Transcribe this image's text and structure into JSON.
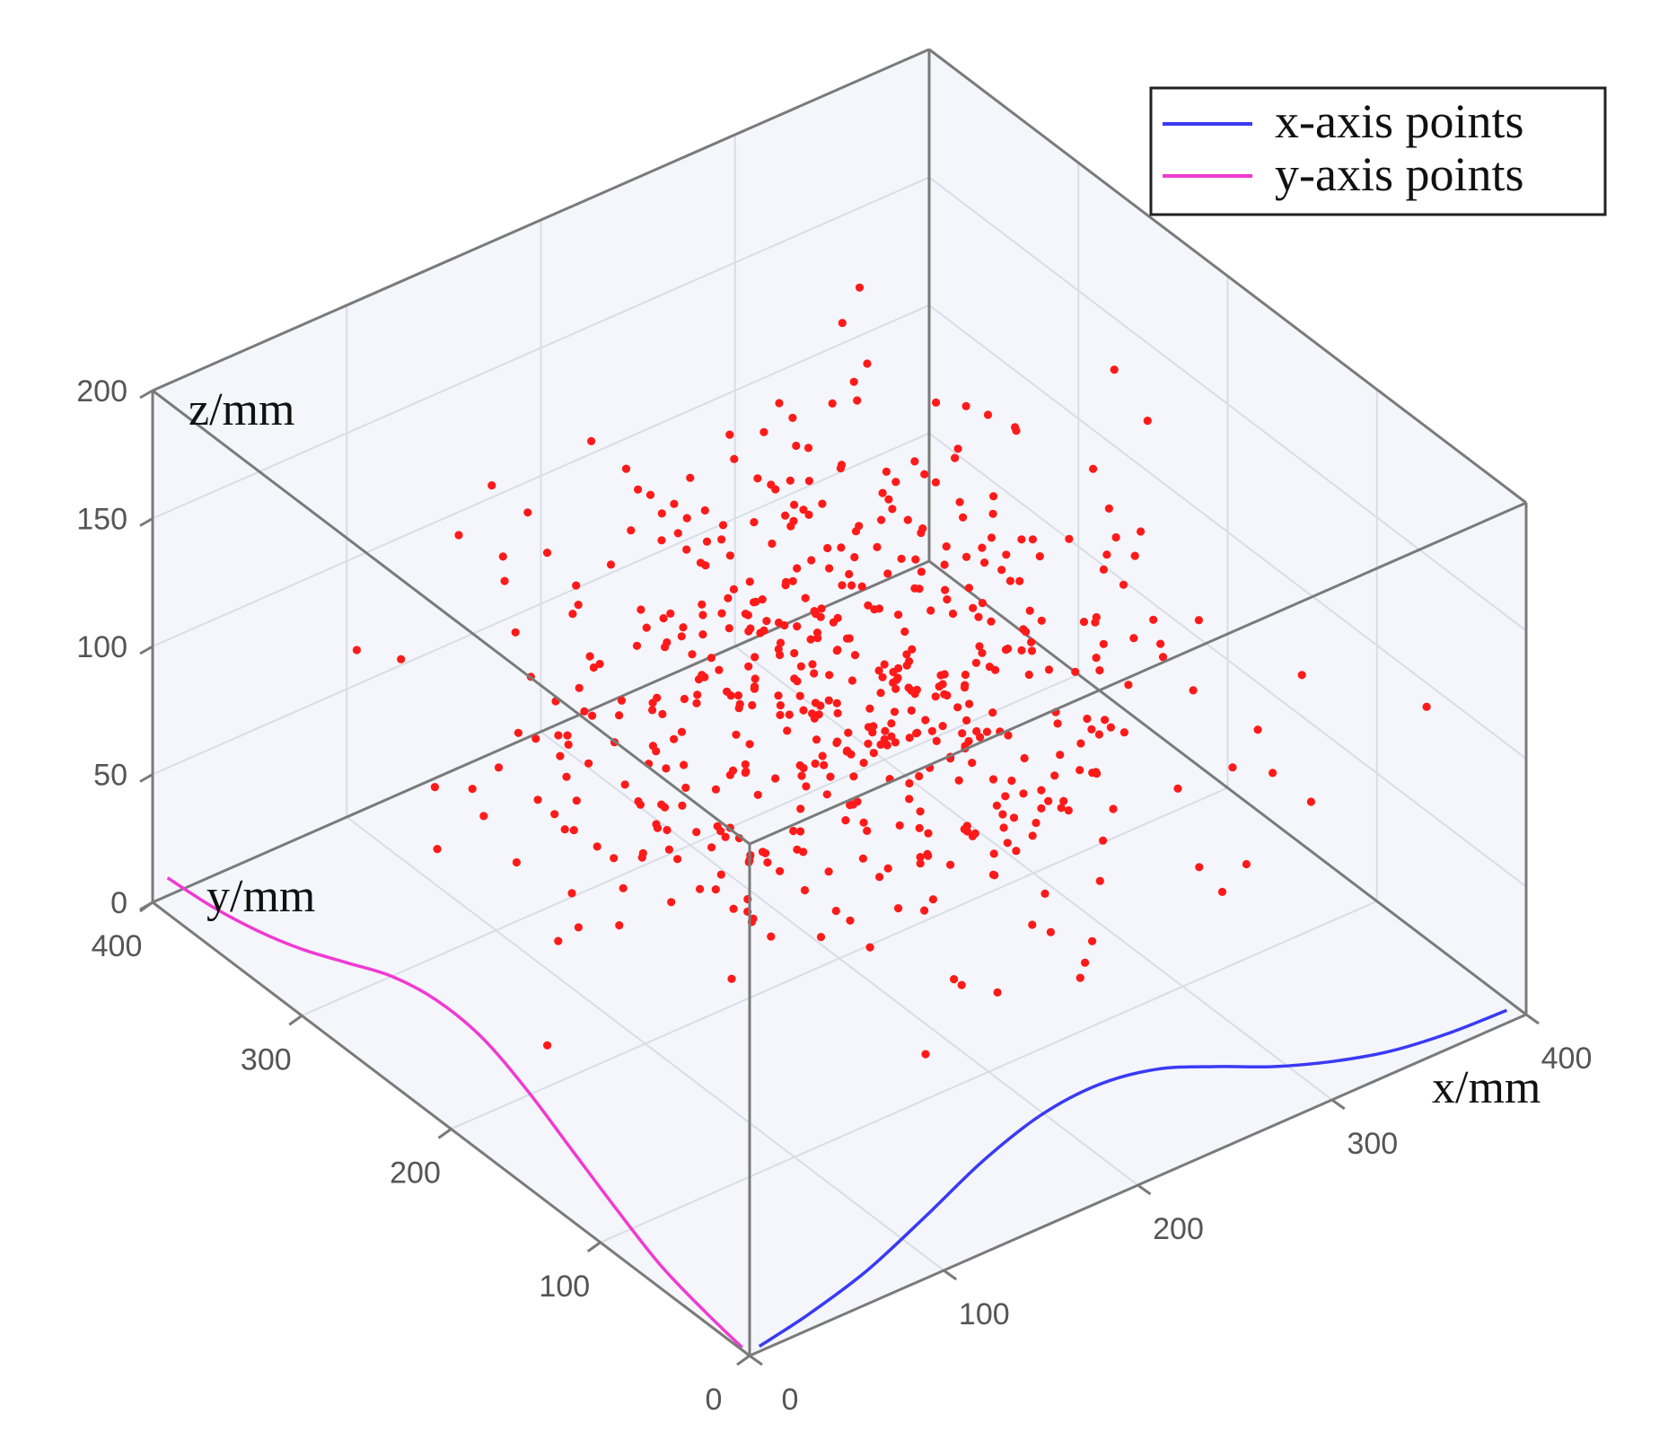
{
  "chart_data": {
    "type": "scatter",
    "projection": "3d",
    "xlabel": "x/mm",
    "ylabel": "y/mm",
    "zlabel": "z/mm",
    "xlim": [
      0,
      400
    ],
    "ylim": [
      0,
      400
    ],
    "zlim": [
      0,
      200
    ],
    "xticks": [
      0,
      100,
      200,
      300,
      400
    ],
    "yticks": [
      0,
      100,
      200,
      300,
      400
    ],
    "zticks": [
      0,
      50,
      100,
      150,
      200
    ],
    "grid": true,
    "legend": {
      "position": "top-right",
      "entries": [
        {
          "label": "x-axis points",
          "color": "#3a3af5"
        },
        {
          "label": "y-axis points",
          "color": "#f03ad2"
        }
      ]
    },
    "colors": {
      "points": "#ff1a1a",
      "x_curve": "#3a3af5",
      "y_curve": "#f03ad2"
    },
    "x_curve": {
      "x": [
        5,
        30,
        60,
        90,
        120,
        150,
        180,
        210,
        240,
        270,
        300,
        330,
        360,
        390
      ],
      "y": [
        0,
        0,
        0,
        0,
        0,
        0,
        0,
        0,
        0,
        0,
        0,
        0,
        0,
        0
      ],
      "z": [
        2,
        6,
        13,
        24,
        36,
        44,
        46,
        42,
        33,
        23,
        15,
        9,
        6,
        5
      ]
    },
    "y_curve": {
      "x": [
        0,
        0,
        0,
        0,
        0,
        0,
        0,
        0,
        0,
        0,
        0,
        0,
        0,
        0
      ],
      "y": [
        5,
        30,
        60,
        90,
        120,
        150,
        180,
        210,
        240,
        270,
        300,
        330,
        360,
        390
      ],
      "z": [
        1,
        4,
        9,
        18,
        28,
        38,
        45,
        46,
        42,
        34,
        26,
        20,
        16,
        14
      ]
    },
    "point_count": 550
  }
}
